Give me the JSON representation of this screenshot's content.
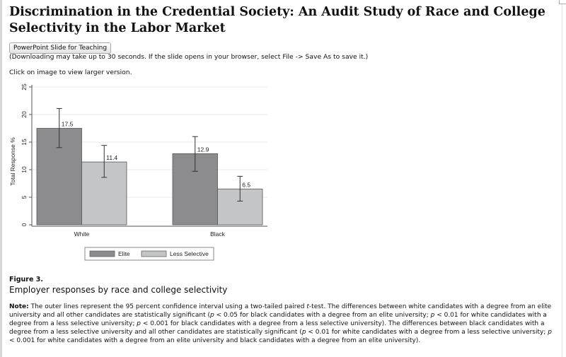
{
  "page": {
    "title": "Discrimination in the Credential Society: An Audit Study of Race and College Selectivity in the Labor Market",
    "ppt_button": "PowerPoint Slide for Teaching",
    "download_note": "(Downloading may take up to 30 seconds. If the slide opens in your browser, select File -> Save As to save it.)",
    "click_hint": "Click on image to view larger version.",
    "figure_label": "Figure 3.",
    "figure_caption": "Employer responses by race and college selectivity",
    "note_label": "Note:",
    "note_text_html": "The outer lines represent the 95 percent confidence interval using a two-tailed paired <i>t</i>-test. The differences between white candidates with a degree from an elite university and all other candidates are statistically significant (<i>p</i> &lt; 0.05 for black candidates with a degree from an elite university; <i>p</i> &lt; 0.01 for white candidates with a degree from a less selective university; <i>p</i> &lt; 0.001 for black candidates with a degree from a less selective university). The differences between black candidates with a degree from a less selective university and all other candidates are statistically significant (<i>p</i> &lt; 0.01 for white candidates with a degree from a less selective university; <i>p</i> &lt; 0.001 for white candidates with a degree from an elite university and black candidates with a degree from an elite university)."
  },
  "chart_data": {
    "type": "bar",
    "categories": [
      "White",
      "Black"
    ],
    "ylabel": "Total Response %",
    "ylim": [
      0,
      25
    ],
    "yticks": [
      0,
      5,
      10,
      15,
      20,
      25
    ],
    "grid": true,
    "legend": "bottom",
    "series": [
      {
        "name": "Elite",
        "color": "#8c8c8e",
        "values": [
          17.5,
          12.9
        ],
        "labels": [
          "17.5",
          "12.9"
        ],
        "ci": [
          [
            14.0,
            21.1
          ],
          [
            9.7,
            16.0
          ]
        ]
      },
      {
        "name": "Less Selective",
        "color": "#c4c5c7",
        "values": [
          11.4,
          6.5
        ],
        "labels": [
          "11.4",
          "6.5"
        ],
        "ci": [
          [
            8.6,
            14.4
          ],
          [
            4.3,
            8.8
          ]
        ]
      }
    ]
  }
}
